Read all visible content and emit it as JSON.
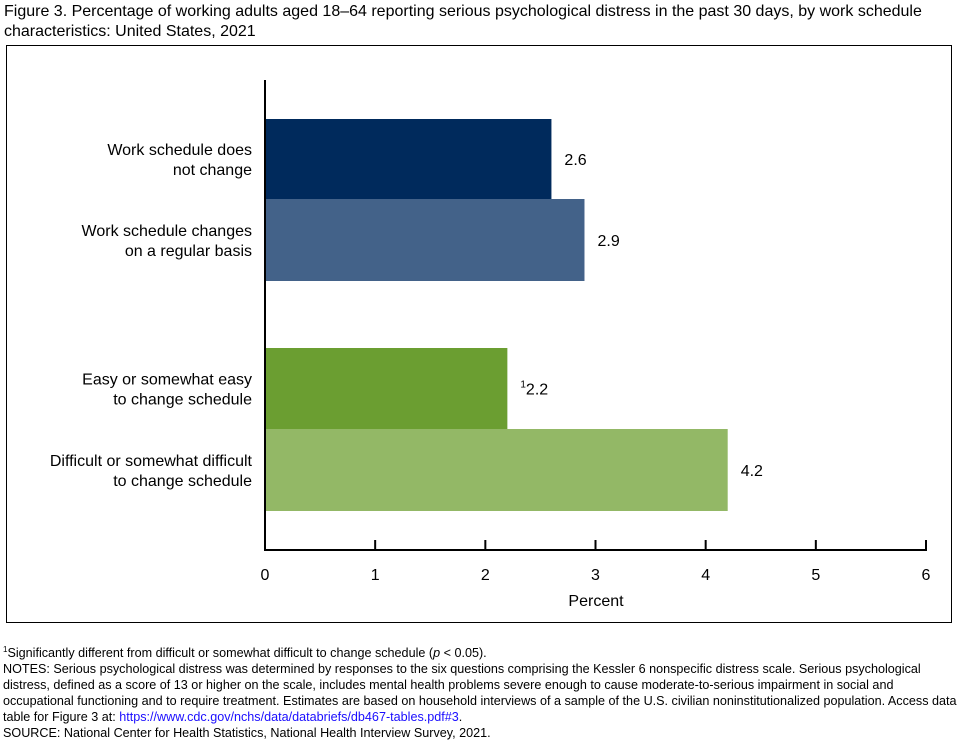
{
  "title": "Figure 3. Percentage of working adults aged 18–64 reporting serious psychological distress in the past 30 days, by work schedule characteristics: United States, 2021",
  "chart_data": {
    "type": "bar",
    "orientation": "horizontal",
    "categories": [
      [
        "Work schedule does",
        "not change"
      ],
      [
        "Work schedule changes",
        "on a regular basis"
      ],
      [
        "Easy or somewhat easy",
        "to change schedule"
      ],
      [
        "Difficult or somewhat difficult",
        "to change schedule"
      ]
    ],
    "values": [
      2.6,
      2.9,
      2.2,
      4.2
    ],
    "labels": [
      "2.6",
      "2.9",
      "2.2",
      "4.2"
    ],
    "label_superscripts": [
      "",
      "",
      "1",
      ""
    ],
    "colors": [
      "#002a5c",
      "#436289",
      "#6b9e31",
      "#93b866"
    ],
    "xlabel": "Percent",
    "xlim": [
      0,
      6
    ],
    "xticks": [
      "0",
      "1",
      "2",
      "3",
      "4",
      "5",
      "6"
    ],
    "grid": false
  },
  "notes": {
    "footnote_sup": "1",
    "footnote": "Significantly different from difficult or somewhat difficult to change schedule (",
    "footnote_p": "p",
    "footnote_end": " < 0.05).",
    "notes_text": "NOTES: Serious psychological distress was determined by responses to the six questions comprising the Kessler 6 nonspecific distress scale. Serious psychological distress, defined as a score of 13 or higher on the scale, includes mental health problems severe enough to cause moderate-to-serious impairment in social and occupational functioning and to require treatment. Estimates are based on household interviews of a sample of the U.S. civilian noninstitutionalized population. Access data table for Figure 3 at: ",
    "link": "https://www.cdc.gov/nchs/data/databriefs/db467-tables.pdf#3",
    "link_end": ".",
    "source": "SOURCE: National Center for Health Statistics, National Health Interview Survey, 2021."
  }
}
